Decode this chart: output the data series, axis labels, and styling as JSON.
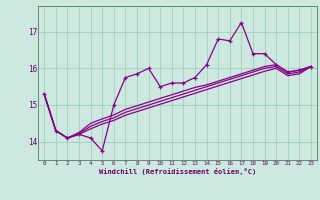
{
  "title": "",
  "xlabel": "Windchill (Refroidissement éolien,°C)",
  "ylabel": "",
  "bg_color": "#cce8df",
  "line_color": "#880088",
  "grid_color": "#99ccbb",
  "text_color": "#660066",
  "spine_color": "#336644",
  "xlim": [
    -0.5,
    23.5
  ],
  "ylim": [
    13.5,
    17.7
  ],
  "yticks": [
    14,
    15,
    16,
    17
  ],
  "xticks": [
    0,
    1,
    2,
    3,
    4,
    5,
    6,
    7,
    8,
    9,
    10,
    11,
    12,
    13,
    14,
    15,
    16,
    17,
    18,
    19,
    20,
    21,
    22,
    23
  ],
  "series1_x": [
    0,
    1,
    2,
    3,
    4,
    5,
    6,
    7,
    8,
    9,
    10,
    11,
    12,
    13,
    14,
    15,
    16,
    17,
    18,
    19,
    20,
    21,
    22,
    23
  ],
  "series1_y": [
    15.3,
    14.3,
    14.1,
    14.2,
    14.1,
    13.75,
    15.0,
    15.75,
    15.85,
    16.0,
    15.5,
    15.6,
    15.6,
    15.75,
    16.1,
    16.8,
    16.75,
    17.25,
    16.4,
    16.4,
    16.1,
    15.9,
    15.95,
    16.05
  ],
  "series2_x": [
    0,
    1,
    2,
    3,
    4,
    5,
    6,
    7,
    8,
    9,
    10,
    11,
    12,
    13,
    14,
    15,
    16,
    17,
    18,
    19,
    20,
    21,
    22,
    23
  ],
  "series2_y": [
    15.3,
    14.3,
    14.1,
    14.25,
    14.5,
    14.62,
    14.73,
    14.88,
    14.98,
    15.08,
    15.18,
    15.28,
    15.38,
    15.48,
    15.55,
    15.65,
    15.75,
    15.85,
    15.95,
    16.05,
    16.1,
    15.9,
    15.95,
    16.05
  ],
  "series3_x": [
    0,
    1,
    2,
    3,
    4,
    5,
    6,
    7,
    8,
    9,
    10,
    11,
    12,
    13,
    14,
    15,
    16,
    17,
    18,
    19,
    20,
    21,
    22,
    23
  ],
  "series3_y": [
    15.3,
    14.3,
    14.1,
    14.22,
    14.42,
    14.55,
    14.65,
    14.8,
    14.9,
    15.0,
    15.1,
    15.2,
    15.3,
    15.4,
    15.5,
    15.6,
    15.7,
    15.8,
    15.9,
    16.0,
    16.05,
    15.85,
    15.9,
    16.05
  ],
  "series4_x": [
    0,
    1,
    2,
    3,
    4,
    5,
    6,
    7,
    8,
    9,
    10,
    11,
    12,
    13,
    14,
    15,
    16,
    17,
    18,
    19,
    20,
    21,
    22,
    23
  ],
  "series4_y": [
    15.3,
    14.3,
    14.1,
    14.2,
    14.35,
    14.48,
    14.58,
    14.72,
    14.82,
    14.92,
    15.02,
    15.12,
    15.22,
    15.32,
    15.42,
    15.52,
    15.62,
    15.72,
    15.82,
    15.92,
    16.0,
    15.8,
    15.85,
    16.05
  ]
}
